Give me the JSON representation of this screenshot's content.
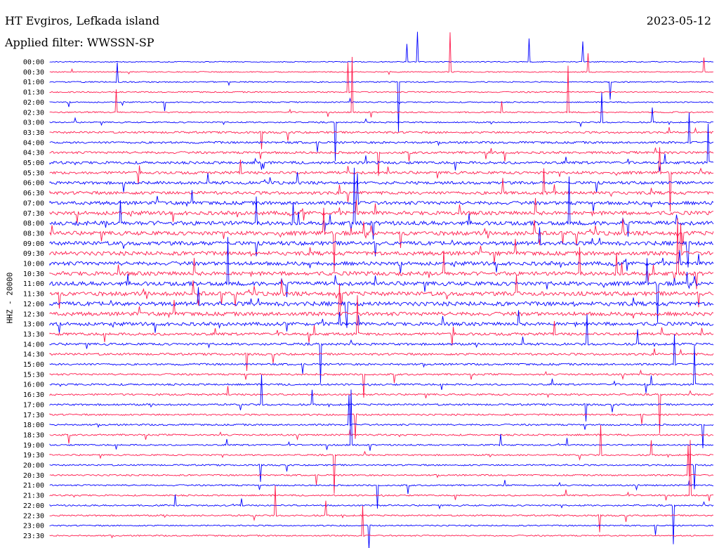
{
  "header": {
    "station": "HT Evgiros, Lefkada island",
    "filter": "Applied filter: WWSSN-SP",
    "date": "2023-05-12"
  },
  "ylabel": "HHZ - 20000",
  "colors": {
    "blue": "#0000ff",
    "red": "#ff1a4d"
  },
  "chart_data": {
    "type": "line",
    "title": "",
    "ylabel": "HHZ - 20000",
    "trace_labels": [
      "00:00",
      "00:30",
      "01:00",
      "01:30",
      "02:00",
      "02:30",
      "03:00",
      "03:30",
      "04:00",
      "04:30",
      "05:00",
      "05:30",
      "06:00",
      "06:30",
      "07:00",
      "07:30",
      "08:00",
      "08:30",
      "09:00",
      "09:30",
      "10:00",
      "10:30",
      "11:00",
      "11:30",
      "12:00",
      "12:30",
      "13:00",
      "13:30",
      "14:00",
      "14:30",
      "15:00",
      "15:30",
      "16:00",
      "16:30",
      "17:00",
      "17:30",
      "18:00",
      "18:30",
      "19:00",
      "19:30",
      "20:00",
      "20:30",
      "21:00",
      "21:30",
      "22:00",
      "22:30",
      "23:00",
      "23:30"
    ],
    "activity_by_trace": [
      0.05,
      0.06,
      0.1,
      0.12,
      0.1,
      0.15,
      0.15,
      0.35,
      0.4,
      0.45,
      0.55,
      0.6,
      0.65,
      0.7,
      0.8,
      0.9,
      1.0,
      1.0,
      0.95,
      0.95,
      0.9,
      0.95,
      1.0,
      1.0,
      1.0,
      0.9,
      0.8,
      0.6,
      0.45,
      0.4,
      0.35,
      0.3,
      0.3,
      0.3,
      0.3,
      0.25,
      0.25,
      0.25,
      0.2,
      0.2,
      0.2,
      0.2,
      0.2,
      0.2,
      0.2,
      0.2,
      0.15,
      0.15
    ],
    "series_colors": [
      "blue",
      "red"
    ]
  }
}
